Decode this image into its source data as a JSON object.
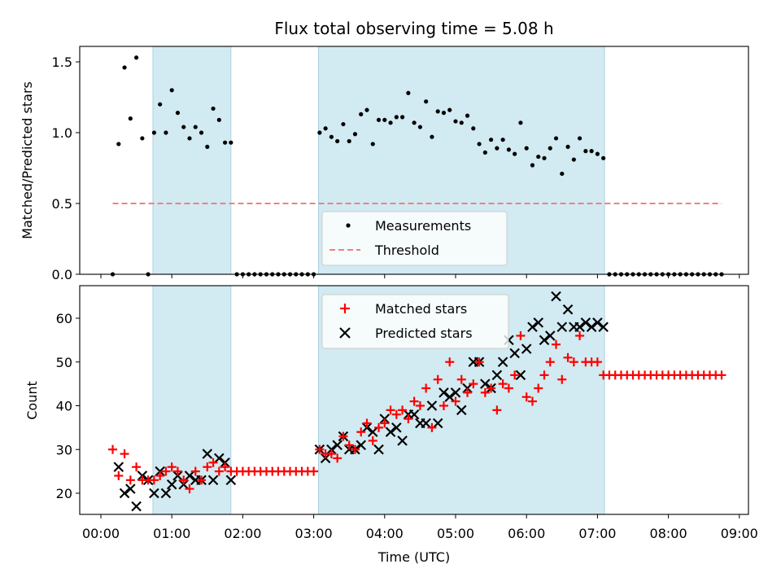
{
  "chart_data": [
    {
      "type": "scatter",
      "title": "Flux total observing time = 5.08 h",
      "xlabel": "",
      "ylabel": "Matched/Predicted stars",
      "xlim": [
        "00:00",
        "09:00"
      ],
      "ylim": [
        0,
        1.6
      ],
      "yticks": [
        "0.0",
        "0.5",
        "1.0",
        "1.5"
      ],
      "legend_placement": "lower-center",
      "colors": {
        "measurements": "#000000",
        "threshold": "#f08080",
        "shading": "#add8e6"
      },
      "shaded_intervals": [
        [
          "00:44",
          "01:50"
        ],
        [
          "03:04",
          "07:06"
        ]
      ],
      "series": [
        {
          "name": "Measurements",
          "x": [
            "00:10",
            "00:15",
            "00:20",
            "00:25",
            "00:30",
            "00:35",
            "00:40",
            "00:45",
            "00:50",
            "00:55",
            "01:00",
            "01:05",
            "01:10",
            "01:15",
            "01:20",
            "01:25",
            "01:30",
            "01:35",
            "01:40",
            "01:45",
            "01:50",
            "01:55",
            "02:00",
            "02:05",
            "02:10",
            "02:15",
            "02:20",
            "02:25",
            "02:30",
            "02:35",
            "02:40",
            "02:45",
            "02:50",
            "02:55",
            "03:00",
            "03:05",
            "03:10",
            "03:15",
            "03:20",
            "03:25",
            "03:30",
            "03:35",
            "03:40",
            "03:45",
            "03:50",
            "03:55",
            "04:00",
            "04:05",
            "04:10",
            "04:15",
            "04:20",
            "04:25",
            "04:30",
            "04:35",
            "04:40",
            "04:45",
            "04:50",
            "04:55",
            "05:00",
            "05:05",
            "05:10",
            "05:15",
            "05:20",
            "05:25",
            "05:30",
            "05:35",
            "05:40",
            "05:45",
            "05:50",
            "05:55",
            "06:00",
            "06:05",
            "06:10",
            "06:15",
            "06:20",
            "06:25",
            "06:30",
            "06:35",
            "06:40",
            "06:45",
            "06:50",
            "06:55",
            "07:00",
            "07:05",
            "07:10",
            "07:15",
            "07:20",
            "07:25",
            "07:30",
            "07:35",
            "07:40",
            "07:45",
            "07:50",
            "07:55",
            "08:00",
            "08:05",
            "08:10",
            "08:15",
            "08:20",
            "08:25",
            "08:30",
            "08:35",
            "08:40",
            "08:45"
          ],
          "y": [
            0.0,
            0.92,
            1.46,
            1.1,
            1.53,
            0.96,
            0.0,
            1.0,
            1.2,
            1.0,
            1.3,
            1.14,
            1.04,
            0.96,
            1.04,
            1.0,
            0.9,
            1.17,
            1.09,
            0.93,
            0.93,
            0.0,
            0.0,
            0.0,
            0.0,
            0.0,
            0.0,
            0.0,
            0.0,
            0.0,
            0.0,
            0.0,
            0.0,
            0.0,
            0.0,
            1.0,
            1.03,
            0.97,
            0.94,
            1.06,
            0.94,
            0.99,
            1.13,
            1.16,
            0.92,
            1.09,
            1.09,
            1.07,
            1.11,
            1.11,
            1.28,
            1.07,
            1.04,
            1.22,
            0.97,
            1.15,
            1.14,
            1.16,
            1.08,
            1.07,
            1.12,
            1.03,
            0.92,
            0.86,
            0.95,
            0.89,
            0.95,
            0.88,
            0.85,
            1.07,
            0.89,
            0.77,
            0.83,
            0.82,
            0.89,
            0.96,
            0.71,
            0.9,
            0.81,
            0.96,
            0.87,
            0.87,
            0.85,
            0.82,
            0.0,
            0.0,
            0.0,
            0.0,
            0.0,
            0.0,
            0.0,
            0.0,
            0.0,
            0.0,
            0.0,
            0.0,
            0.0,
            0.0,
            0.0,
            0.0,
            0.0,
            0.0,
            0.0,
            0.0
          ]
        },
        {
          "name": "Threshold",
          "x": [
            "00:10",
            "08:45"
          ],
          "y": [
            0.5,
            0.5
          ]
        }
      ]
    },
    {
      "type": "scatter",
      "title": "",
      "xlabel": "Time (UTC)",
      "ylabel": "Count",
      "xlim": [
        "00:00",
        "09:00"
      ],
      "ylim": [
        15,
        67
      ],
      "xticks": [
        "00:00",
        "01:00",
        "02:00",
        "03:00",
        "04:00",
        "05:00",
        "06:00",
        "07:00",
        "08:00",
        "09:00"
      ],
      "yticks": [
        "20",
        "30",
        "40",
        "50",
        "60"
      ],
      "legend_placement": "upper-center",
      "colors": {
        "matched": "#ff0000",
        "predicted": "#000000",
        "shading": "#add8e6"
      },
      "shaded_intervals": [
        [
          "00:44",
          "01:50"
        ],
        [
          "03:04",
          "07:06"
        ]
      ],
      "series": [
        {
          "name": "Matched stars",
          "x": [
            "00:10",
            "00:15",
            "00:20",
            "00:25",
            "00:30",
            "00:35",
            "00:40",
            "00:45",
            "00:50",
            "00:55",
            "01:00",
            "01:05",
            "01:10",
            "01:15",
            "01:20",
            "01:25",
            "01:30",
            "01:35",
            "01:40",
            "01:45",
            "01:50",
            "01:55",
            "02:00",
            "02:05",
            "02:10",
            "02:15",
            "02:20",
            "02:25",
            "02:30",
            "02:35",
            "02:40",
            "02:45",
            "02:50",
            "02:55",
            "03:00",
            "03:05",
            "03:10",
            "03:15",
            "03:20",
            "03:25",
            "03:30",
            "03:35",
            "03:40",
            "03:45",
            "03:50",
            "03:55",
            "04:00",
            "04:05",
            "04:10",
            "04:15",
            "04:20",
            "04:25",
            "04:30",
            "04:35",
            "04:40",
            "04:45",
            "04:50",
            "04:55",
            "05:00",
            "05:05",
            "05:10",
            "05:15",
            "05:20",
            "05:25",
            "05:30",
            "05:35",
            "05:40",
            "05:45",
            "05:50",
            "05:55",
            "06:00",
            "06:05",
            "06:10",
            "06:15",
            "06:20",
            "06:25",
            "06:30",
            "06:35",
            "06:40",
            "06:45",
            "06:50",
            "06:55",
            "07:00",
            "07:05",
            "07:10",
            "07:15",
            "07:20",
            "07:25",
            "07:30",
            "07:35",
            "07:40",
            "07:45",
            "07:50",
            "07:55",
            "08:00",
            "08:05",
            "08:10",
            "08:15",
            "08:20",
            "08:25",
            "08:30",
            "08:35",
            "08:40",
            "08:45"
          ],
          "y": [
            30,
            24,
            29,
            23,
            26,
            23,
            23,
            23,
            24,
            25,
            26,
            25,
            23,
            21,
            25,
            23,
            26,
            27,
            25,
            26,
            25,
            25,
            25,
            25,
            25,
            25,
            25,
            25,
            25,
            25,
            25,
            25,
            25,
            25,
            25,
            30,
            29,
            29,
            28,
            33,
            31,
            30,
            34,
            36,
            32,
            35,
            36,
            39,
            38,
            39,
            37,
            41,
            40,
            44,
            35,
            46,
            40,
            50,
            41,
            46,
            43,
            45,
            50,
            43,
            44,
            39,
            45,
            44,
            47,
            56,
            42,
            41,
            44,
            47,
            50,
            54,
            46,
            51,
            50,
            56,
            50,
            50,
            50,
            47,
            47,
            47,
            47,
            47,
            47,
            47,
            47,
            47,
            47,
            47,
            47,
            47,
            47,
            47,
            47,
            47,
            47,
            47,
            47,
            47
          ]
        },
        {
          "name": "Predicted stars",
          "x": [
            "00:15",
            "00:20",
            "00:25",
            "00:30",
            "00:35",
            "00:40",
            "00:45",
            "00:50",
            "00:55",
            "01:00",
            "01:05",
            "01:10",
            "01:15",
            "01:20",
            "01:25",
            "01:30",
            "01:35",
            "01:40",
            "01:45",
            "01:50",
            "03:05",
            "03:10",
            "03:15",
            "03:20",
            "03:25",
            "03:30",
            "03:35",
            "03:40",
            "03:45",
            "03:50",
            "03:55",
            "04:00",
            "04:05",
            "04:10",
            "04:15",
            "04:20",
            "04:25",
            "04:30",
            "04:35",
            "04:40",
            "04:45",
            "04:50",
            "04:55",
            "05:00",
            "05:05",
            "05:10",
            "05:15",
            "05:20",
            "05:25",
            "05:30",
            "05:35",
            "05:40",
            "05:45",
            "05:50",
            "05:55",
            "06:00",
            "06:05",
            "06:10",
            "06:15",
            "06:20",
            "06:25",
            "06:30",
            "06:35",
            "06:40",
            "06:45",
            "06:50",
            "06:55",
            "07:00",
            "07:05"
          ],
          "y": [
            26,
            20,
            21,
            17,
            24,
            23,
            20,
            25,
            20,
            22,
            24,
            22,
            24,
            23,
            23,
            29,
            23,
            28,
            27,
            23,
            30,
            28,
            30,
            31,
            33,
            30,
            30,
            31,
            35,
            34,
            30,
            37,
            34,
            35,
            32,
            38,
            38,
            36,
            36,
            40,
            36,
            43,
            42,
            43,
            39,
            44,
            50,
            50,
            45,
            44,
            47,
            50,
            55,
            52,
            47,
            53,
            58,
            59,
            55,
            56,
            65,
            58,
            62,
            58,
            58,
            59,
            58,
            59,
            58
          ]
        }
      ]
    }
  ]
}
